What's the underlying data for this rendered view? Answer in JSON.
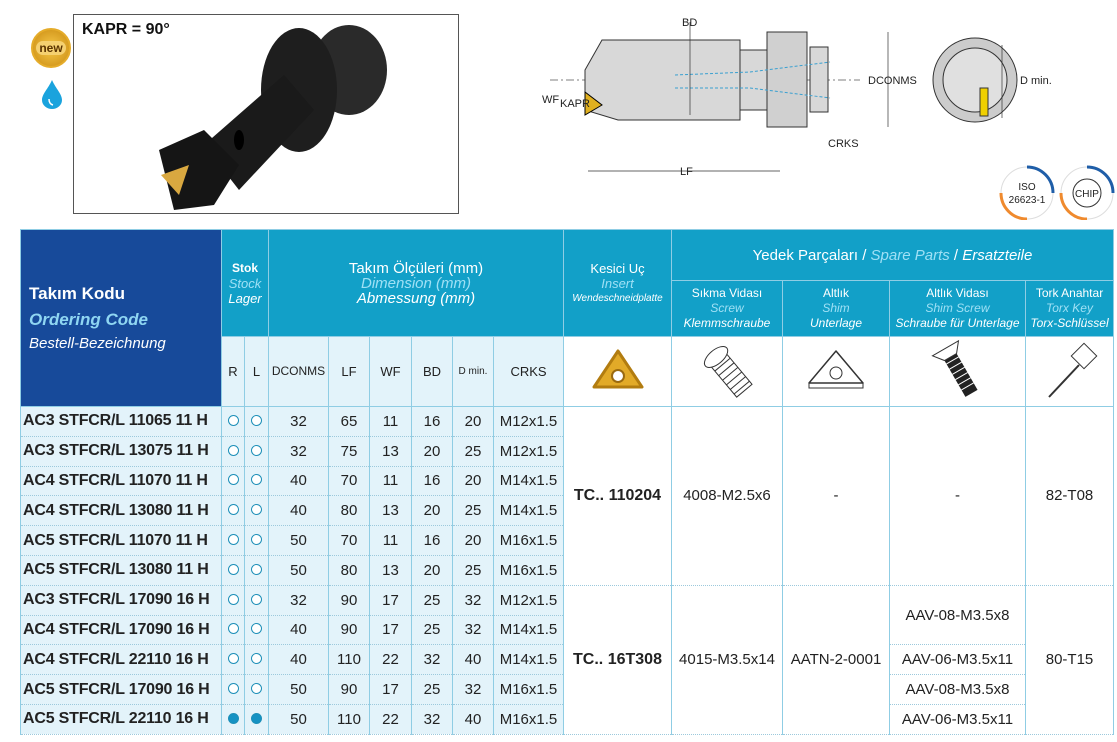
{
  "badges": {
    "new": "new",
    "coolant_icon": "water-drop-icon"
  },
  "photo": {
    "kapr_label": "KAPR = 90°"
  },
  "drawing": {
    "labels": {
      "bd": "BD",
      "dconms": "DCONMS",
      "wf": "WF",
      "kapr": "KAPR",
      "crks": "CRKS",
      "lf": "LF",
      "dmin": "D min."
    }
  },
  "certs": {
    "iso": [
      "ISO",
      "26623-1"
    ],
    "chip": "CHIP"
  },
  "colors": {
    "header": "#12a0c8",
    "code_header": "#174a9a",
    "body": "#e3f3fa",
    "stock_filled": "#1592c3"
  },
  "header": {
    "code": [
      "Takım Kodu",
      "Ordering Code",
      "Bestell-Bezeichnung"
    ],
    "stock": [
      "Stok",
      "Stock",
      "Lager"
    ],
    "dims": [
      "Takım Ölçüleri (mm)",
      "Dimension (mm)",
      "Abmessung (mm)"
    ],
    "insert": [
      "Kesici Uç",
      "Insert",
      "Wendeschneidplatte"
    ],
    "spare": [
      "Yedek Parçaları",
      "Spare Parts",
      "Ersatzteile"
    ],
    "screw": [
      "Sıkma Vidası",
      "Screw",
      "Klemmschraube"
    ],
    "shim": [
      "Altlık",
      "Shim",
      "Unterlage"
    ],
    "shim_screw": [
      "Altlık Vidası",
      "Shim Screw",
      "Schraube für Unterlage"
    ],
    "key": [
      "Tork Anahtar",
      "Torx Key",
      "Torx-Schlüssel"
    ],
    "cols": [
      "R",
      "L",
      "DCONMS",
      "LF",
      "WF",
      "BD",
      "D min.",
      "CRKS"
    ]
  },
  "rows": [
    {
      "code": "AC3 STFCR/L 11065 11 H",
      "r": "empty",
      "l": "empty",
      "dconms": "32",
      "lf": "65",
      "wf": "11",
      "bd": "16",
      "dmin": "20",
      "crks": "M12x1.5"
    },
    {
      "code": "AC3 STFCR/L 13075 11 H",
      "r": "empty",
      "l": "empty",
      "dconms": "32",
      "lf": "75",
      "wf": "13",
      "bd": "20",
      "dmin": "25",
      "crks": "M12x1.5"
    },
    {
      "code": "AC4 STFCR/L 11070 11 H",
      "r": "empty",
      "l": "empty",
      "dconms": "40",
      "lf": "70",
      "wf": "11",
      "bd": "16",
      "dmin": "20",
      "crks": "M14x1.5"
    },
    {
      "code": "AC4 STFCR/L 13080 11 H",
      "r": "empty",
      "l": "empty",
      "dconms": "40",
      "lf": "80",
      "wf": "13",
      "bd": "20",
      "dmin": "25",
      "crks": "M14x1.5"
    },
    {
      "code": "AC5 STFCR/L 11070 11 H",
      "r": "empty",
      "l": "empty",
      "dconms": "50",
      "lf": "70",
      "wf": "11",
      "bd": "16",
      "dmin": "20",
      "crks": "M16x1.5"
    },
    {
      "code": "AC5 STFCR/L 13080 11 H",
      "r": "empty",
      "l": "empty",
      "dconms": "50",
      "lf": "80",
      "wf": "13",
      "bd": "20",
      "dmin": "25",
      "crks": "M16x1.5"
    },
    {
      "code": "AC3 STFCR/L 17090 16 H",
      "r": "empty",
      "l": "empty",
      "dconms": "32",
      "lf": "90",
      "wf": "17",
      "bd": "25",
      "dmin": "32",
      "crks": "M12x1.5"
    },
    {
      "code": "AC4 STFCR/L 17090 16 H",
      "r": "empty",
      "l": "empty",
      "dconms": "40",
      "lf": "90",
      "wf": "17",
      "bd": "25",
      "dmin": "32",
      "crks": "M14x1.5"
    },
    {
      "code": "AC4 STFCR/L 22110 16 H",
      "r": "empty",
      "l": "empty",
      "dconms": "40",
      "lf": "110",
      "wf": "22",
      "bd": "32",
      "dmin": "40",
      "crks": "M14x1.5"
    },
    {
      "code": "AC5 STFCR/L 17090 16 H",
      "r": "empty",
      "l": "empty",
      "dconms": "50",
      "lf": "90",
      "wf": "17",
      "bd": "25",
      "dmin": "32",
      "crks": "M16x1.5"
    },
    {
      "code": "AC5 STFCR/L 22110 16 H",
      "r": "filled",
      "l": "filled",
      "dconms": "50",
      "lf": "110",
      "wf": "22",
      "bd": "32",
      "dmin": "40",
      "crks": "M16x1.5"
    }
  ],
  "groups": [
    {
      "insert": "TC.. 110204",
      "screw": "4008-M2.5x6",
      "shim": "-",
      "shim_screw": [
        "-"
      ],
      "key": "82-T08"
    },
    {
      "insert": "TC.. 16T308",
      "screw": "4015-M3.5x14",
      "shim": "AATN-2-0001",
      "shim_screw": [
        "AAV-08-M3.5x8",
        "AAV-06-M3.5x11",
        "AAV-08-M3.5x8",
        "AAV-06-M3.5x11"
      ],
      "key": "80-T15"
    }
  ]
}
